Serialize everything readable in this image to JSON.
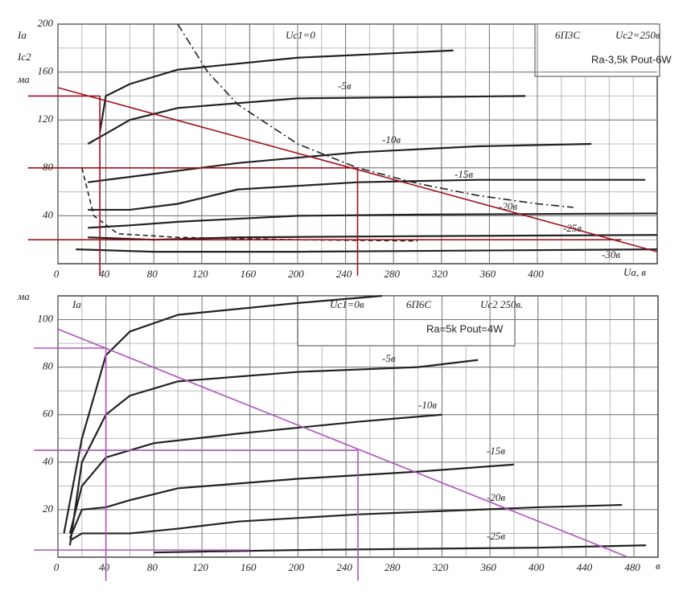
{
  "chart_data": [
    {
      "type": "line",
      "annotations": [
        "Ia",
        "Ic2",
        "ма",
        "6П3С",
        "Uc2=250в",
        "Ra-3,5k  Pout-6W",
        "Ua, в"
      ],
      "xlim": [
        0,
        500
      ],
      "ylim": [
        0,
        200
      ],
      "xticks": [
        0,
        40,
        80,
        120,
        160,
        200,
        240,
        280,
        320,
        360,
        400
      ],
      "yticks": [
        40,
        80,
        120,
        160,
        200
      ],
      "grid": true,
      "series": [
        {
          "name": "Uc1=0",
          "color": "#222",
          "x": [
            35,
            40,
            60,
            100,
            200,
            330
          ],
          "values": [
            110,
            140,
            150,
            162,
            172,
            178
          ]
        },
        {
          "name": "-5в",
          "color": "#222",
          "x": [
            25,
            60,
            100,
            200,
            390
          ],
          "values": [
            100,
            120,
            130,
            138,
            140
          ]
        },
        {
          "name": "-10в",
          "color": "#222",
          "x": [
            25,
            80,
            150,
            250,
            350,
            445
          ],
          "values": [
            68,
            75,
            84,
            93,
            98,
            100
          ]
        },
        {
          "name": "-15в",
          "color": "#222",
          "x": [
            25,
            60,
            100,
            150,
            250,
            350,
            490
          ],
          "values": [
            45,
            45,
            50,
            62,
            68,
            70,
            70
          ]
        },
        {
          "name": "-20в",
          "color": "#222",
          "x": [
            25,
            60,
            100,
            200,
            300,
            500
          ],
          "values": [
            30,
            32,
            35,
            40,
            41,
            42
          ]
        },
        {
          "name": "-25в",
          "color": "#222",
          "x": [
            25,
            80,
            150,
            300,
            500
          ],
          "values": [
            22,
            20,
            22,
            23,
            24
          ]
        },
        {
          "name": "-30в",
          "color": "#222",
          "x": [
            15,
            80,
            200,
            500
          ],
          "values": [
            12,
            10,
            10,
            12
          ]
        },
        {
          "color": "#222",
          "dash": "10 4 2 4",
          "x": [
            100,
            125,
            150,
            200,
            250,
            300,
            350,
            400,
            430
          ],
          "values": [
            200,
            160,
            133,
            100,
            80,
            67,
            57,
            50,
            47
          ]
        },
        {
          "color": "#222",
          "dash": "6 4",
          "x": [
            20,
            30,
            50,
            100,
            200,
            300
          ],
          "values": [
            80,
            40,
            25,
            22,
            20,
            19
          ]
        },
        {
          "color": "#a0101c",
          "x": [
            0,
            500
          ],
          "values": [
            147,
            10
          ]
        },
        {
          "color": "#a0101c",
          "x": [
            35,
            35
          ],
          "values": [
            140,
            -10
          ]
        },
        {
          "color": "#a0101c",
          "x": [
            250,
            250
          ],
          "values": [
            80,
            -10
          ]
        },
        {
          "color": "#a0101c",
          "x": [
            -25,
            35
          ],
          "values": [
            140,
            140
          ]
        },
        {
          "color": "#a0101c",
          "x": [
            -25,
            250
          ],
          "values": [
            80,
            80
          ]
        },
        {
          "color": "#a0101c",
          "x": [
            -25,
            470
          ],
          "values": [
            20,
            20
          ]
        }
      ]
    },
    {
      "type": "line",
      "annotations": [
        "ма",
        "Ia",
        "6П6С",
        "Uc2 250в.",
        "Ra=5k  Pout=4W",
        "в"
      ],
      "xlim": [
        0,
        500
      ],
      "ylim": [
        0,
        110
      ],
      "xticks": [
        0,
        40,
        80,
        120,
        160,
        200,
        240,
        280,
        320,
        360,
        400,
        440,
        480
      ],
      "yticks": [
        20,
        40,
        60,
        80,
        100
      ],
      "grid": true,
      "series": [
        {
          "name": "Uc1=0в",
          "color": "#222",
          "x": [
            5,
            20,
            40,
            60,
            100,
            200,
            270
          ],
          "values": [
            10,
            50,
            85,
            95,
            102,
            107,
            110
          ]
        },
        {
          "name": "-5в",
          "color": "#222",
          "x": [
            10,
            20,
            40,
            60,
            100,
            200,
            300,
            350
          ],
          "values": [
            5,
            40,
            60,
            68,
            74,
            78,
            80,
            83
          ]
        },
        {
          "name": "-10в",
          "color": "#222",
          "x": [
            10,
            20,
            40,
            80,
            150,
            250,
            320
          ],
          "values": [
            10,
            30,
            42,
            48,
            52,
            57,
            60
          ]
        },
        {
          "name": "-15в",
          "color": "#222",
          "x": [
            10,
            20,
            40,
            60,
            100,
            200,
            300,
            380
          ],
          "values": [
            8,
            20,
            21,
            24,
            29,
            33,
            36,
            39
          ]
        },
        {
          "name": "-20в",
          "color": "#222",
          "x": [
            10,
            20,
            60,
            100,
            150,
            250,
            400,
            470
          ],
          "values": [
            7,
            10,
            10,
            12,
            15,
            18,
            21,
            22
          ]
        },
        {
          "name": "-25в",
          "color": "#222",
          "x": [
            80,
            200,
            400,
            490
          ],
          "values": [
            2,
            3,
            4,
            5
          ]
        },
        {
          "color": "#b050c0",
          "x": [
            0,
            475
          ],
          "values": [
            96,
            0
          ]
        },
        {
          "color": "#b050c0",
          "x": [
            40,
            40
          ],
          "values": [
            88,
            -10
          ]
        },
        {
          "color": "#b050c0",
          "x": [
            250,
            250
          ],
          "values": [
            45,
            -10
          ]
        },
        {
          "color": "#b050c0",
          "x": [
            -20,
            40
          ],
          "values": [
            88,
            88
          ]
        },
        {
          "color": "#b050c0",
          "x": [
            -20,
            250
          ],
          "values": [
            45,
            45
          ]
        },
        {
          "color": "#b050c0",
          "x": [
            -20,
            160
          ],
          "values": [
            3,
            3
          ]
        }
      ]
    }
  ]
}
